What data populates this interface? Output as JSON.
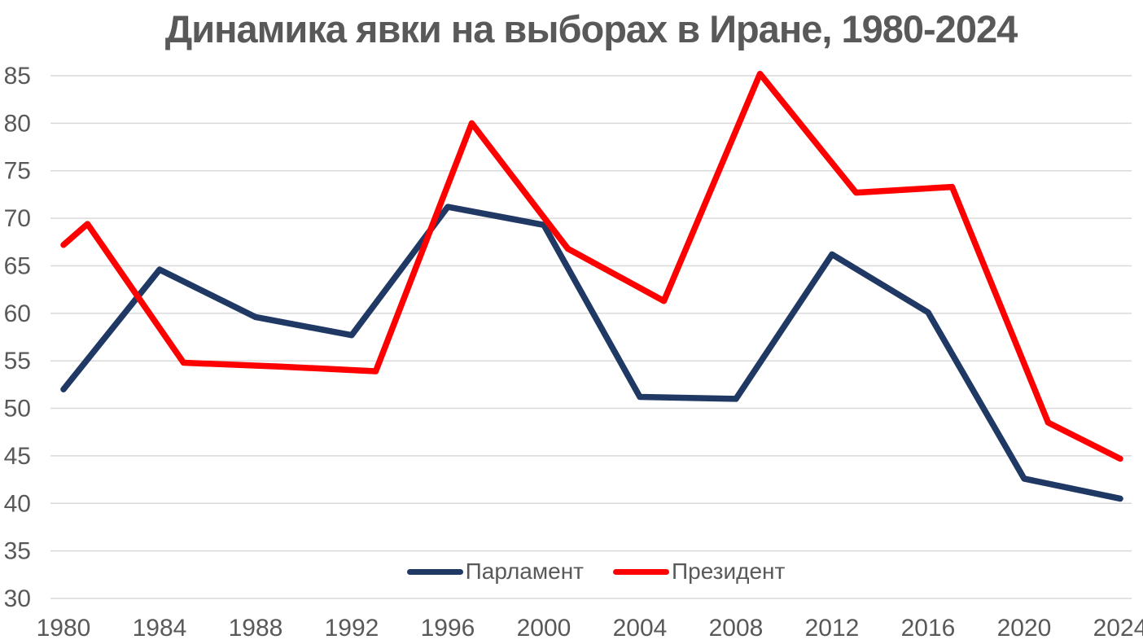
{
  "chart_data": {
    "type": "line",
    "title": "Динамика явки на выборах в Иране, 1980-2024",
    "xlabel": "",
    "ylabel": "",
    "xlim": [
      1980,
      2024
    ],
    "ylim": [
      30,
      85
    ],
    "xticks": [
      1980,
      1984,
      1988,
      1992,
      1996,
      2000,
      2004,
      2008,
      2012,
      2016,
      2020,
      2024
    ],
    "yticks": [
      30,
      35,
      40,
      45,
      50,
      55,
      60,
      65,
      70,
      75,
      80,
      85
    ],
    "grid": true,
    "legend_position": "bottom-center",
    "series": [
      {
        "id": "parliament",
        "name": "Парламент",
        "color": "#1F3864",
        "points": [
          [
            1980,
            52.0
          ],
          [
            1984,
            64.6
          ],
          [
            1988,
            59.6
          ],
          [
            1992,
            57.7
          ],
          [
            1996,
            71.2
          ],
          [
            2000,
            69.3
          ],
          [
            2004,
            51.2
          ],
          [
            2008,
            51.0
          ],
          [
            2012,
            66.2
          ],
          [
            2016,
            60.1
          ],
          [
            2020,
            42.6
          ],
          [
            2024,
            40.5
          ]
        ]
      },
      {
        "id": "president",
        "name": "Президент",
        "color": "#FF0000",
        "points": [
          [
            1980,
            67.2
          ],
          [
            1981,
            69.4
          ],
          [
            1985,
            54.8
          ],
          [
            1989,
            54.4
          ],
          [
            1993,
            53.9
          ],
          [
            1997,
            80.0
          ],
          [
            2001,
            66.8
          ],
          [
            2005,
            61.3
          ],
          [
            2009,
            85.2
          ],
          [
            2013,
            72.7
          ],
          [
            2017,
            73.3
          ],
          [
            2021,
            48.5
          ],
          [
            2024,
            44.7
          ]
        ]
      }
    ],
    "colors": {
      "grid": "#D9D9D9",
      "text": "#595959",
      "background": "#FFFFFF"
    }
  }
}
